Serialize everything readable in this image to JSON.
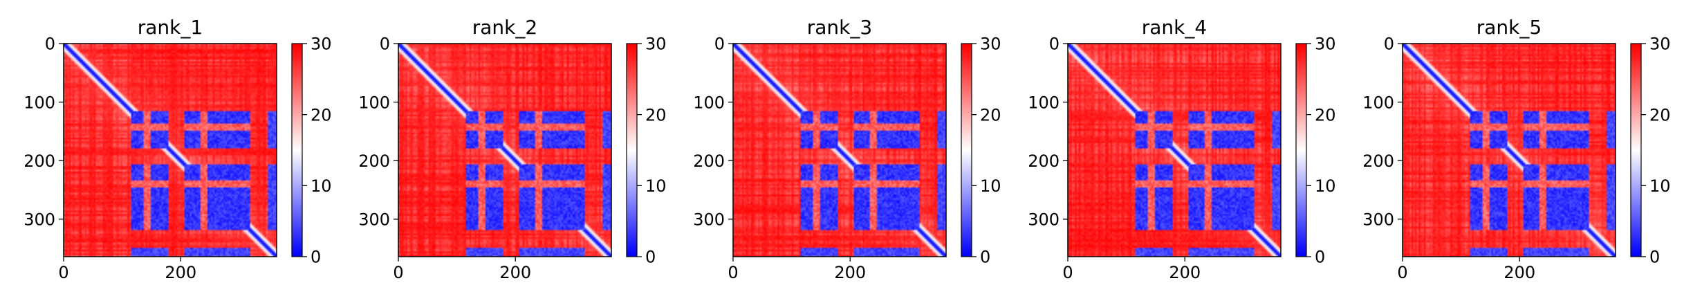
{
  "chart_data": [
    {
      "type": "heatmap",
      "title": "rank_1",
      "variant": 0,
      "matrix_size": 364,
      "x_ticks": [
        0,
        200
      ],
      "y_ticks": [
        0,
        100,
        200,
        300
      ],
      "xlim": [
        0,
        364
      ],
      "ylim": [
        364,
        0
      ],
      "colorbar": {
        "min": 0,
        "max": 30,
        "ticks": [
          0,
          10,
          20,
          30
        ]
      },
      "colormap": {
        "low": "#0000ff",
        "mid": "#ffffff",
        "high": "#ff0000"
      },
      "notes": "distance map; low values along diagonal and in blocks approx residues 110-180 and 200-320"
    },
    {
      "type": "heatmap",
      "title": "rank_2",
      "variant": 1,
      "matrix_size": 364,
      "x_ticks": [
        0,
        200
      ],
      "y_ticks": [
        0,
        100,
        200,
        300
      ],
      "xlim": [
        0,
        364
      ],
      "ylim": [
        364,
        0
      ],
      "colorbar": {
        "min": 0,
        "max": 30,
        "ticks": [
          0,
          10,
          20,
          30
        ]
      },
      "colormap": {
        "low": "#0000ff",
        "mid": "#ffffff",
        "high": "#ff0000"
      }
    },
    {
      "type": "heatmap",
      "title": "rank_3",
      "variant": 2,
      "matrix_size": 364,
      "x_ticks": [
        0,
        200
      ],
      "y_ticks": [
        0,
        100,
        200,
        300
      ],
      "xlim": [
        0,
        364
      ],
      "ylim": [
        364,
        0
      ],
      "colorbar": {
        "min": 0,
        "max": 30,
        "ticks": [
          0,
          10,
          20,
          30
        ]
      },
      "colormap": {
        "low": "#0000ff",
        "mid": "#ffffff",
        "high": "#ff0000"
      }
    },
    {
      "type": "heatmap",
      "title": "rank_4",
      "variant": 3,
      "matrix_size": 364,
      "x_ticks": [
        0,
        200
      ],
      "y_ticks": [
        0,
        100,
        200,
        300
      ],
      "xlim": [
        0,
        364
      ],
      "ylim": [
        364,
        0
      ],
      "colorbar": {
        "min": 0,
        "max": 30,
        "ticks": [
          0,
          10,
          20,
          30
        ]
      },
      "colormap": {
        "low": "#0000ff",
        "mid": "#ffffff",
        "high": "#ff0000"
      }
    },
    {
      "type": "heatmap",
      "title": "rank_5",
      "variant": 4,
      "matrix_size": 364,
      "x_ticks": [
        0,
        200
      ],
      "y_ticks": [
        0,
        100,
        200,
        300
      ],
      "xlim": [
        0,
        364
      ],
      "ylim": [
        364,
        0
      ],
      "colorbar": {
        "min": 0,
        "max": 30,
        "ticks": [
          0,
          10,
          20,
          30
        ]
      },
      "colormap": {
        "low": "#0000ff",
        "mid": "#ffffff",
        "high": "#ff0000"
      }
    }
  ]
}
